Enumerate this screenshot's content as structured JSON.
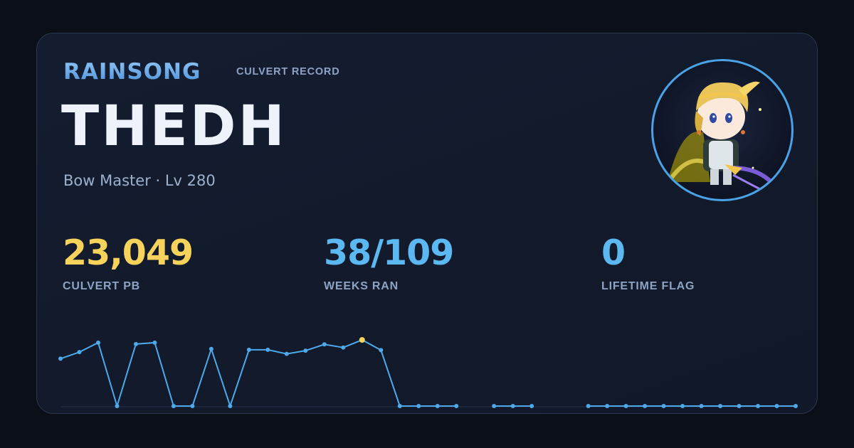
{
  "header": {
    "brand": "RAINSONG",
    "record_label": "CULVERT RECORD"
  },
  "player": {
    "name": "THEDH",
    "class_level": "Bow Master · Lv 280",
    "avatar_icon": "character-avatar-icon"
  },
  "stats": [
    {
      "value": "23,049",
      "label": "CULVERT PB",
      "color": "#f7d35c"
    },
    {
      "value": "38/109",
      "label": "WEEKS RAN",
      "color": "#5cb8f0"
    },
    {
      "value": "0",
      "label": "LIFETIME FLAG",
      "color": "#5cb8f0"
    }
  ],
  "colors": {
    "line": "#4ea9ea",
    "highlight": "#f7d35c",
    "baseline": "#26324a"
  },
  "chart_data": {
    "type": "line",
    "title": "",
    "xlabel": "",
    "ylabel": "",
    "x": [
      1,
      2,
      3,
      4,
      5,
      6,
      7,
      8,
      9,
      10,
      11,
      12,
      13,
      14,
      15,
      16,
      17,
      18,
      19,
      20,
      21,
      22,
      23,
      24,
      25,
      26,
      27,
      28,
      29,
      30,
      31,
      32,
      33,
      34,
      35,
      36,
      37,
      38,
      39,
      40
    ],
    "series": [
      {
        "values": [
          16500,
          18800,
          22100,
          0,
          21600,
          22100,
          0,
          0,
          19900,
          0,
          19600,
          19600,
          18200,
          19300,
          21500,
          20400,
          23049,
          19500,
          0,
          0,
          0,
          0,
          null,
          0,
          0,
          0,
          null,
          null,
          0,
          0,
          0,
          0,
          0,
          0,
          0,
          0,
          0,
          0,
          0,
          0
        ]
      }
    ],
    "highlight_index": 16,
    "ylim": [
      0,
      23049
    ],
    "grid": false,
    "legend": "none"
  }
}
